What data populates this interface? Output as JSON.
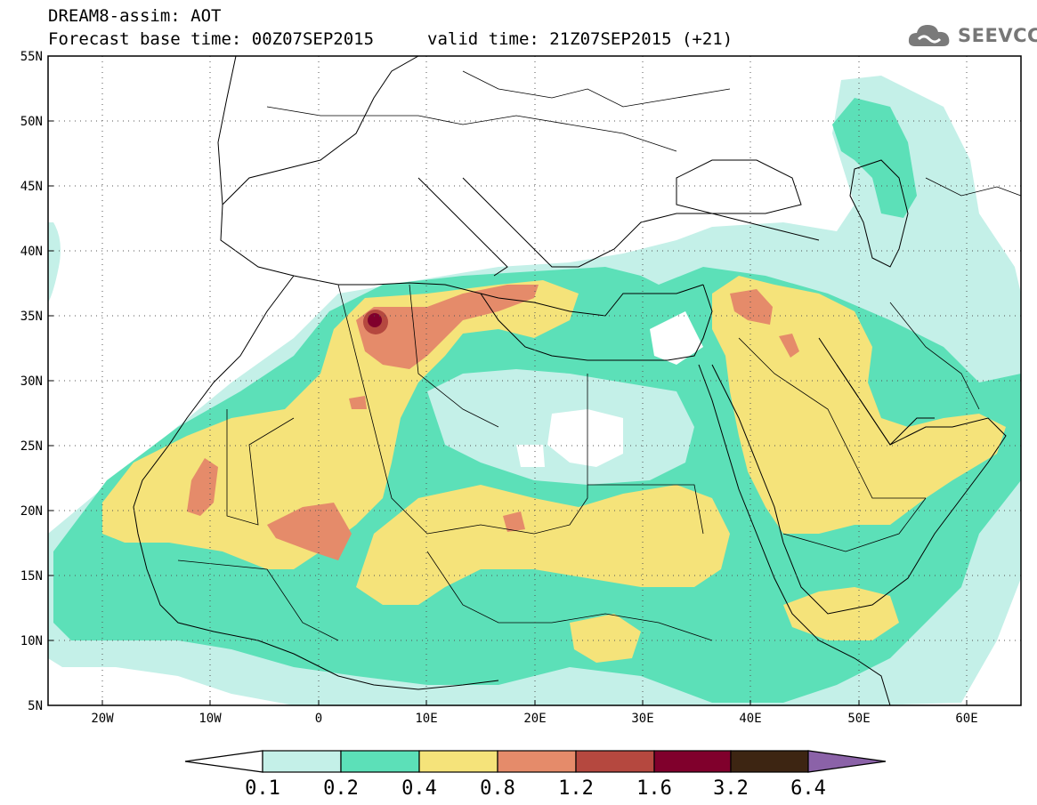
{
  "header": {
    "model": "DREAM8-assim: AOT",
    "base_time": "Forecast base time: 00Z07SEP2015",
    "valid_time": "valid time: 21Z07SEP2015 (+21)"
  },
  "logo": {
    "icon": "cloud-logo-icon",
    "text": "SEEVCCC"
  },
  "axes": {
    "lat_labels": [
      "55N",
      "50N",
      "45N",
      "40N",
      "35N",
      "30N",
      "25N",
      "20N",
      "15N",
      "10N",
      "5N"
    ],
    "lon_labels": [
      "20W",
      "10W",
      "0",
      "10E",
      "20E",
      "30E",
      "40E",
      "50E",
      "60E"
    ]
  },
  "colorbar": {
    "labels": [
      "0.1",
      "0.2",
      "0.4",
      "0.8",
      "1.2",
      "1.6",
      "3.2",
      "6.4"
    ],
    "colors": [
      "#ffffff",
      "#c4f0e8",
      "#5ce0b8",
      "#f5e37a",
      "#e58b6a",
      "#b5483f",
      "#80002c",
      "#3d2512",
      "#8b62a8"
    ]
  },
  "map_colors": {
    "aot_0_1": "#c4f0e8",
    "aot_0_2": "#5ce0b8",
    "aot_0_4": "#f5e37a",
    "aot_0_8": "#e58b6a",
    "aot_1_2": "#b5483f",
    "aot_1_6": "#80002c"
  }
}
